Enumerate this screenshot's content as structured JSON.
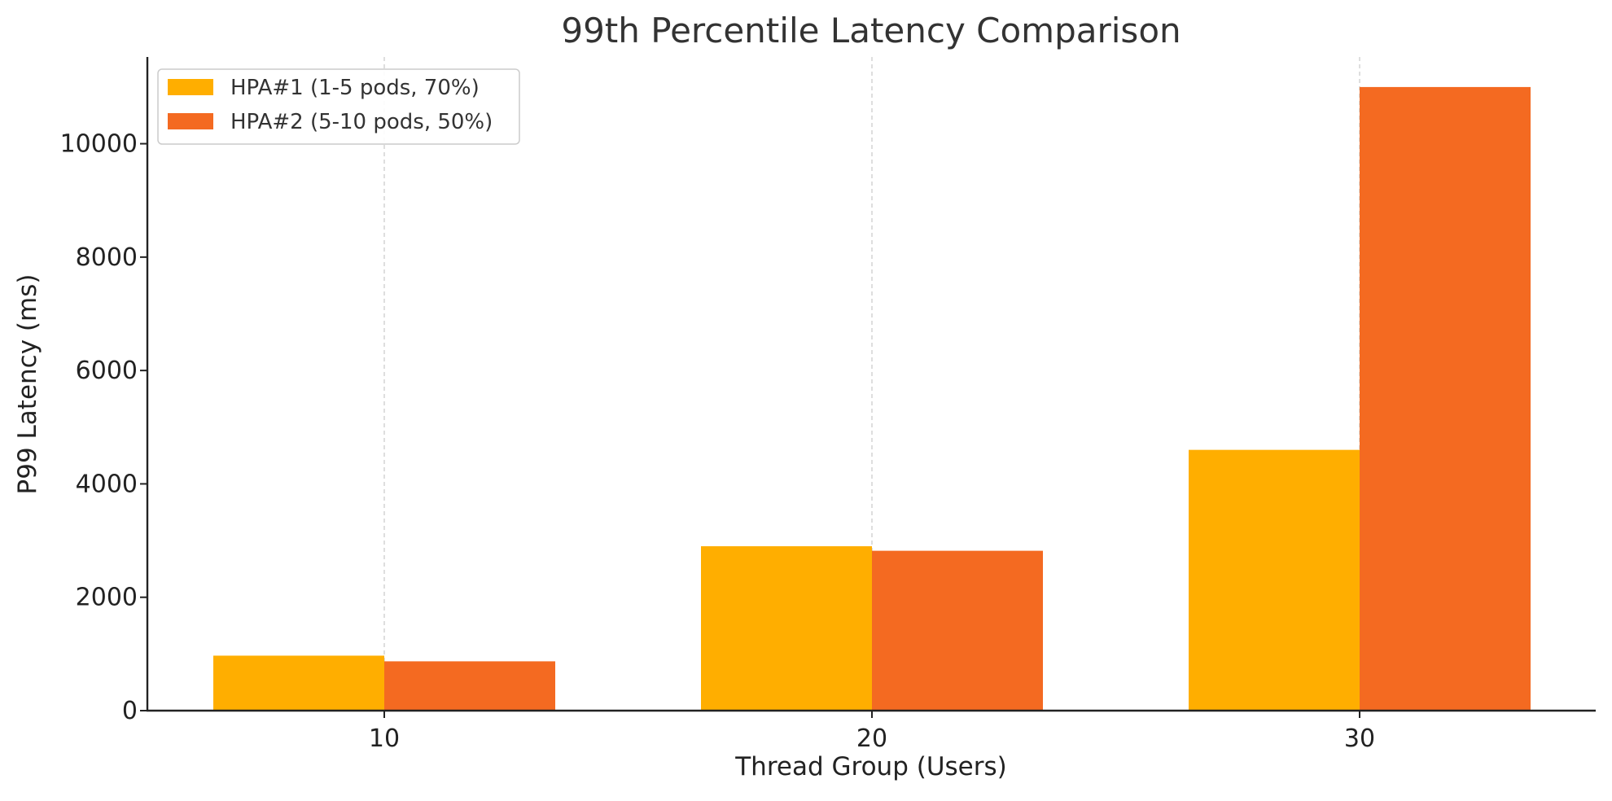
{
  "chart_data": {
    "type": "bar",
    "title": "99th Percentile Latency Comparison",
    "xlabel": "Thread Group (Users)",
    "ylabel": "P99 Latency (ms)",
    "categories": [
      "10",
      "20",
      "30"
    ],
    "series": [
      {
        "name": "HPA#1 (1-5 pods, 70%)",
        "color": "#FFAE00",
        "values": [
          970,
          2900,
          4600
        ]
      },
      {
        "name": "HPA#2 (5-10 pods, 50%)",
        "color": "#F46A21",
        "values": [
          870,
          2820,
          11000
        ]
      }
    ],
    "yticks": [
      0,
      2000,
      4000,
      6000,
      8000,
      10000
    ],
    "ylim": [
      0,
      11530
    ],
    "grid": "x-dashed",
    "legend": "top-left"
  }
}
